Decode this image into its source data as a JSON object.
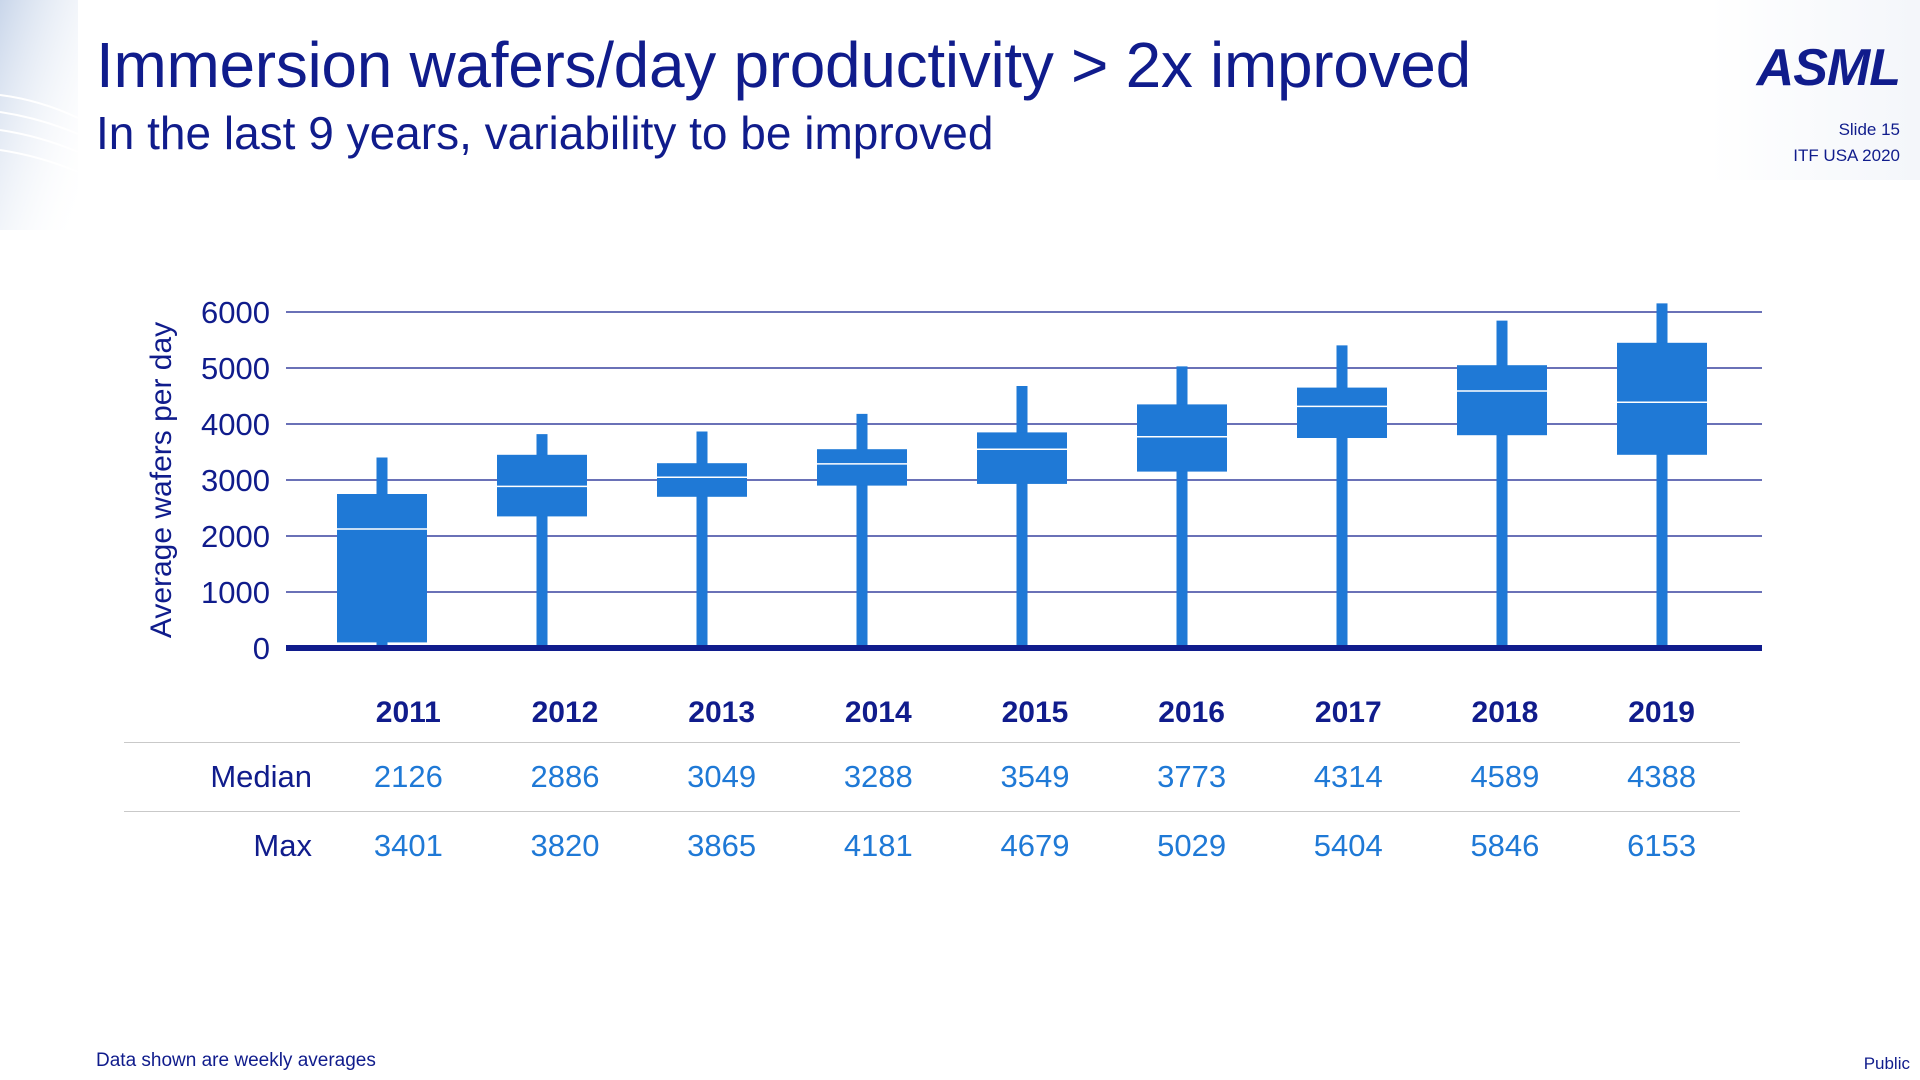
{
  "header": {
    "title": "Immersion wafers/day productivity > 2x improved",
    "subtitle": "In the last 9 years, variability to be improved",
    "logo": "ASML",
    "slide_number": "Slide 15",
    "event": "ITF USA 2020"
  },
  "colors": {
    "title": "#101c8c",
    "box": "#1f79d6",
    "axis": "#101c8c",
    "gridline": "#101c8c"
  },
  "chart_data": {
    "type": "box",
    "title": "",
    "xlabel": "",
    "ylabel": "Average wafers per day",
    "ylim": [
      0,
      6000
    ],
    "yticks": [
      0,
      1000,
      2000,
      3000,
      4000,
      5000,
      6000
    ],
    "grid": true,
    "categories": [
      "2011",
      "2012",
      "2013",
      "2014",
      "2015",
      "2016",
      "2017",
      "2018",
      "2019"
    ],
    "series": [
      {
        "min": [
          0,
          0,
          0,
          0,
          0,
          0,
          0,
          0,
          0
        ],
        "q1": [
          100,
          2350,
          2700,
          2900,
          2930,
          3150,
          3750,
          3800,
          3450
        ],
        "median": [
          2126,
          2886,
          3049,
          3288,
          3549,
          3773,
          4314,
          4589,
          4388
        ],
        "q3": [
          2750,
          3450,
          3300,
          3550,
          3850,
          4350,
          4650,
          5050,
          5450
        ],
        "max": [
          3401,
          3820,
          3865,
          4181,
          4679,
          5029,
          5404,
          5846,
          6153
        ]
      }
    ]
  },
  "table": {
    "years": [
      "2011",
      "2012",
      "2013",
      "2014",
      "2015",
      "2016",
      "2017",
      "2018",
      "2019"
    ],
    "median_label": "Median",
    "median": [
      "2126",
      "2886",
      "3049",
      "3288",
      "3549",
      "3773",
      "4314",
      "4589",
      "4388"
    ],
    "max_label": "Max",
    "max": [
      "3401",
      "3820",
      "3865",
      "4181",
      "4679",
      "5029",
      "5404",
      "5846",
      "6153"
    ]
  },
  "footer": {
    "note": "Data shown are weekly averages",
    "classification": "Public"
  }
}
